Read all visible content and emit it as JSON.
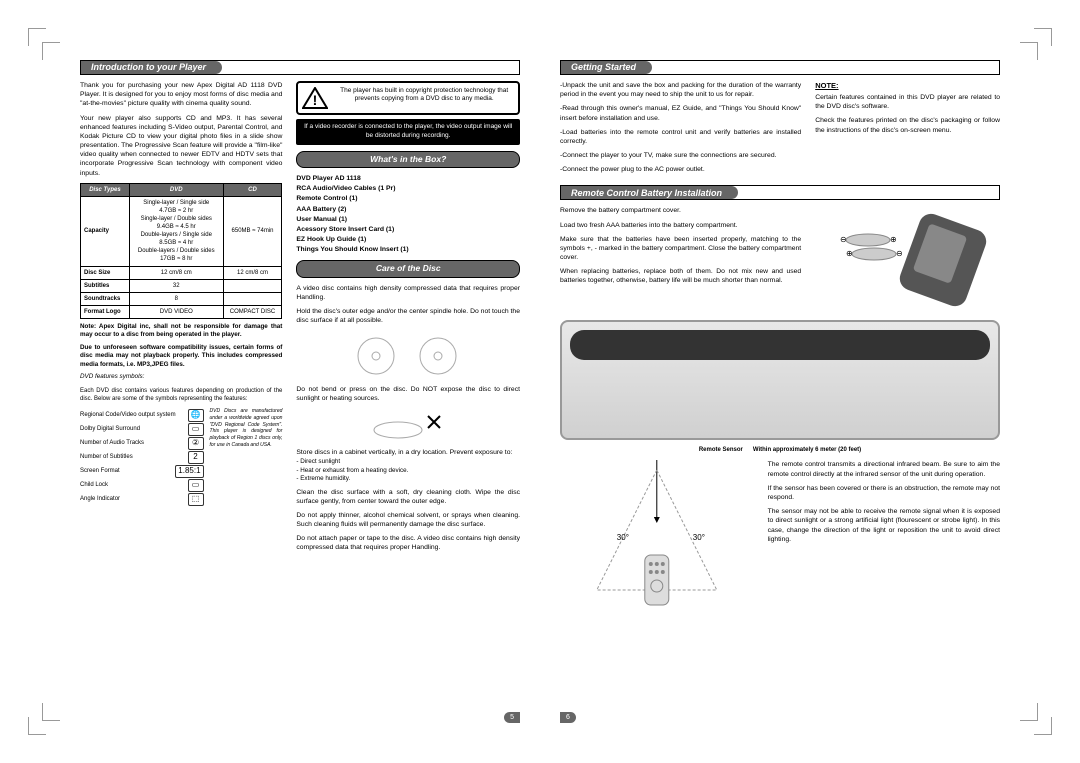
{
  "page_left_num": "5",
  "page_right_num": "6",
  "left": {
    "title": "Introduction to your Player",
    "intro1": "Thank you for purchasing your new Apex Digital AD 1118 DVD Player. It is designed for you to enjoy most forms of disc media and \"at-the-movies\" picture quality with cinema quality sound.",
    "intro2": "Your new player also supports CD and MP3. It has several enhanced features including S-Video output, Parental Control, and Kodak Picture CD to view your digital photo files in a slide show presentation. The Progressive Scan feature will provide a \"film-like\" video quality when connected to newer EDTV and HDTV sets that incorporate Progressive Scan technology with component video inputs.",
    "warn1": "The player has built in copyright protection technology that prevents copying from a DVD disc to any media.",
    "warn2": "If a video recorder is connected to the player, the video output image will be distorted during recording.",
    "whats_in_box": "What's in the Box?",
    "box_items": [
      "DVD Player   AD 1118",
      "RCA Audio/Video Cables (1 Pr)",
      "Remote Control (1)",
      "AAA Battery (2)",
      "User Manual (1)",
      "Acessory Store Insert Card (1)",
      "EZ Hook Up Guide (1)",
      "Things You Should Know Insert (1)"
    ],
    "care_title": "Care of the Disc",
    "care1": "A video disc contains high density compressed data that requires proper Handling.",
    "care2": "Hold the disc's outer edge and/or the center spindle hole. Do not touch the disc surface if at all possible.",
    "care3": "Do not bend or press on the disc. Do NOT expose the disc to direct sunlight or heating sources.",
    "care4": "Store discs in a cabinet vertically, in a dry location. Prevent exposure to:",
    "care4_list": [
      "- Direct sunlight",
      "- Heat or exhaust from a heating device.",
      "- Extreme humidity."
    ],
    "care5": "Clean the disc surface with a soft, dry cleaning cloth. Wipe the disc surface gently, from center toward the outer edge.",
    "care6": "Do not apply thinner, alcohol chemical solvent, or sprays when cleaning. Such cleaning fluids will permanently damage the disc surface.",
    "care7": "Do not attach paper or tape to the disc. A video disc contains high density compressed data that requires proper Handling.",
    "table": {
      "headers": [
        "Disc Types",
        "DVD",
        "CD"
      ],
      "rows": [
        [
          "Capacity",
          "Single-layer / Single side\n4.7GB ≈ 2 hr\nSingle-layer / Double sides\n9.4GB ≈ 4.5 hr\nDouble-layers / Single side\n8.5GB ≈ 4 hr\nDouble-layers / Double sides\n17GB ≈ 8 hr",
          "650MB ≈ 74min"
        ],
        [
          "Disc Size",
          "12 cm/8 cm",
          "12 cm/8 cm"
        ],
        [
          "Subtitles",
          "32",
          ""
        ],
        [
          "Soundtracks",
          "8",
          ""
        ],
        [
          "Format Logo",
          "DVD VIDEO",
          "COMPACT DISC"
        ]
      ]
    },
    "note1": "Note: Apex Digital inc, shall not be responsible for damage that may occur to a disc from being operated in the player.",
    "note2": "Due to unforeseen software compatibility issues, certain forms of disc media may not playback properly. This includes compressed media formats, i.e. MP3,JPEG files.",
    "feat_intro_title": "DVD features symbols:",
    "feat_intro": "Each DVD disc contains various features depending on production of the disc. Below are some of the symbols representing the features:",
    "features": [
      "Regional Code/Video output system",
      "Dolby Digital Surround",
      "Number of Audio Tracks",
      "Number of Subtitles",
      "Screen Format",
      "Child Lock",
      "Angle Indicator"
    ],
    "feat_note": "DVD Discs are manufactured under a worldwide agreed upon \"DVD Regional Code System\". This player is designed for playback of Region 1 discs only, for use in Canada and USA."
  },
  "right": {
    "title": "Getting Started",
    "gs1": "-Unpack the unit and save the box and packing for the duration of the warranty period in the event you may need to ship the unit to us for repair.",
    "gs2": "-Read through this owner's manual, EZ Guide, and \"Things You Should Know\" insert before installation and use.",
    "gs3": "-Load batteries into the remote control unit and verify batteries are installed correctly.",
    "gs4": "-Connect the player to your TV, make sure the connections are secured.",
    "gs5": "-Connect the power plug to the AC power outlet.",
    "note_hdr": "NOTE:",
    "note1": "Certain features contained in this DVD player are related to the DVD disc's software.",
    "note2": "Check the features printed on the disc's packaging or follow the instructions of the disc's on-screen menu.",
    "rc_title": "Remote Control Battery Installation",
    "rc1": "Remove the battery compartment cover.",
    "rc2": "Load two fresh AAA batteries into the battery compartment.",
    "rc3": "Make sure that the batteries have been inserted properly, matching to the symbols +, - marked in the battery compartment. Close the battery compartment cover.",
    "rc4": "When replacing batteries, replace both of them.  Do not mix new and used batteries together, otherwise, battery life will be much shorter than normal.",
    "sensor_lbl": "Remote Sensor",
    "sensor_range": "Within approximately 6 meter (20 feet)",
    "ir1": "The remote control transmits a directional infrared beam. Be sure to aim the remote control directly at the infrared sensor of the unit during operation.",
    "ir2": "If the sensor has been covered or there is an obstruction, the remote may not respond.",
    "ir3": "The sensor may not be able to receive the remote signal when it is exposed to direct sunlight or a strong artificial light (flourescent or strobe light). In this case, change the direction of the light or reposition the unit to avoid direct lighting."
  }
}
